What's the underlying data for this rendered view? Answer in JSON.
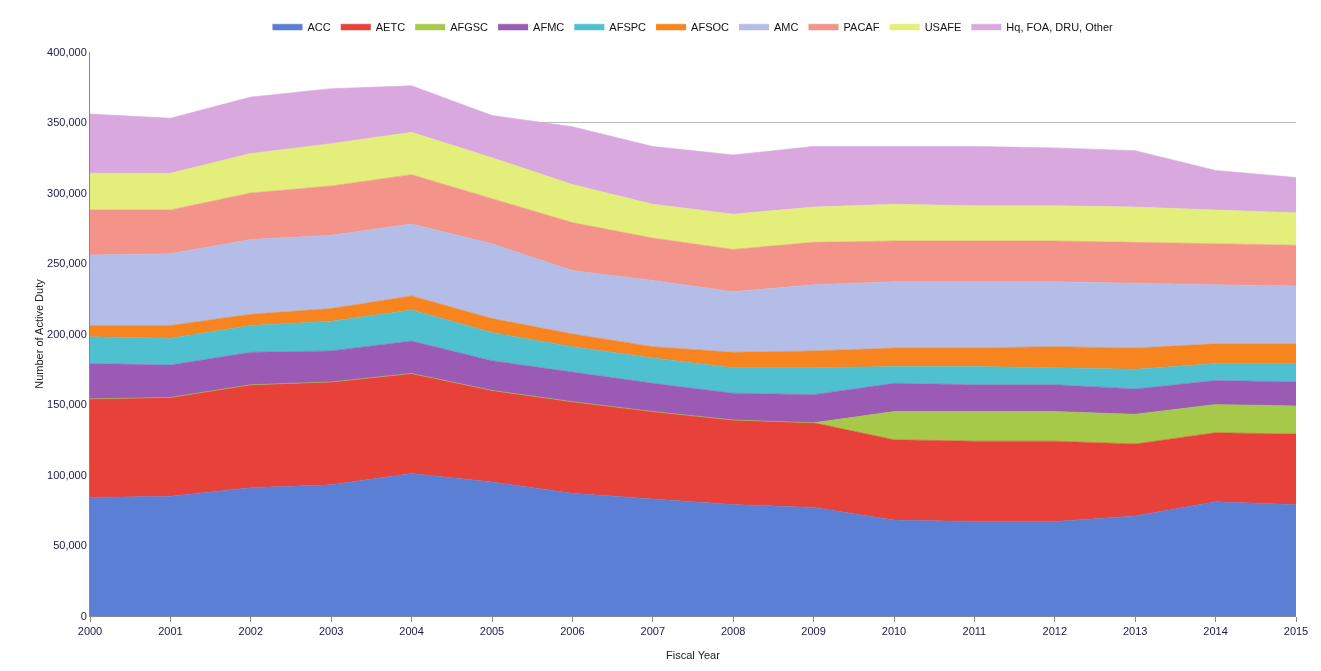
{
  "chart_data": {
    "type": "area",
    "stacked": true,
    "xlabel": "Fiscal Year",
    "ylabel": "Number of Active Duty",
    "x": [
      2000,
      2001,
      2002,
      2003,
      2004,
      2005,
      2006,
      2007,
      2008,
      2009,
      2010,
      2011,
      2012,
      2013,
      2014,
      2015
    ],
    "series": [
      {
        "name": "ACC",
        "color": "#5b7fd4",
        "values": [
          84000,
          85000,
          91000,
          93000,
          101000,
          95000,
          87000,
          83000,
          79000,
          77000,
          68000,
          67000,
          67000,
          71000,
          81000,
          79000
        ]
      },
      {
        "name": "AETC",
        "color": "#e8413a",
        "values": [
          70000,
          70000,
          73000,
          73000,
          71000,
          65000,
          65000,
          62000,
          60000,
          60000,
          57000,
          57000,
          57000,
          51000,
          49000,
          50000
        ]
      },
      {
        "name": "AFGSC",
        "color": "#a6c94a",
        "values": [
          0,
          0,
          0,
          0,
          0,
          0,
          0,
          0,
          0,
          0,
          20000,
          21000,
          21000,
          21000,
          20000,
          20000
        ]
      },
      {
        "name": "AFMC",
        "color": "#9b5bb5",
        "values": [
          25000,
          23000,
          23000,
          22000,
          23000,
          21000,
          21000,
          20000,
          19000,
          20000,
          20000,
          19000,
          19000,
          18000,
          17000,
          17000
        ]
      },
      {
        "name": "AFSPC",
        "color": "#4fc0d0",
        "values": [
          19000,
          19000,
          19000,
          21000,
          22000,
          20000,
          18000,
          18000,
          18000,
          19000,
          12000,
          13000,
          12000,
          14000,
          12000,
          13000
        ]
      },
      {
        "name": "AFSOC",
        "color": "#f7841f",
        "values": [
          8000,
          9000,
          8000,
          9000,
          10000,
          10000,
          9000,
          8000,
          11000,
          12000,
          13000,
          13000,
          15000,
          15000,
          14000,
          14000
        ]
      },
      {
        "name": "AMC",
        "color": "#b3bde8",
        "values": [
          50000,
          51000,
          53000,
          52000,
          51000,
          53000,
          45000,
          47000,
          43000,
          47000,
          47000,
          47000,
          46000,
          46000,
          42000,
          41000
        ]
      },
      {
        "name": "PACAF",
        "color": "#f4938a",
        "values": [
          32000,
          31000,
          33000,
          35000,
          35000,
          32000,
          34000,
          30000,
          30000,
          30000,
          29000,
          29000,
          29000,
          29000,
          29000,
          29000
        ]
      },
      {
        "name": "USAFE",
        "color": "#e4ee7a",
        "values": [
          26000,
          26000,
          28000,
          30000,
          30000,
          29000,
          27000,
          24000,
          25000,
          25000,
          26000,
          25000,
          25000,
          25000,
          24000,
          23000
        ]
      },
      {
        "name": "Hq, FOA, DRU, Other",
        "color": "#d9a8de",
        "values": [
          42000,
          39000,
          40000,
          39000,
          33000,
          30000,
          41000,
          41000,
          42000,
          43000,
          41000,
          42000,
          41000,
          40000,
          28000,
          25000
        ]
      }
    ],
    "xlim": [
      2000,
      2015
    ],
    "xticks": [
      2000,
      2001,
      2002,
      2003,
      2004,
      2005,
      2006,
      2007,
      2008,
      2009,
      2010,
      2011,
      2012,
      2013,
      2014,
      2015
    ],
    "ylim": [
      0,
      400000
    ],
    "yticks": [
      0,
      {
        "value": 50000,
        "label": "50,000"
      },
      {
        "value": 100000,
        "label": "100,000"
      },
      {
        "value": 150000,
        "label": "150,000"
      },
      {
        "value": 200000,
        "label": "200,000"
      },
      {
        "value": 250000,
        "label": "250,000"
      },
      {
        "value": 300000,
        "label": "300,000"
      },
      {
        "value": 350000,
        "label": "350,000"
      },
      {
        "value": 400000,
        "label": "400,000"
      }
    ],
    "grid": "y",
    "legend": "top"
  }
}
